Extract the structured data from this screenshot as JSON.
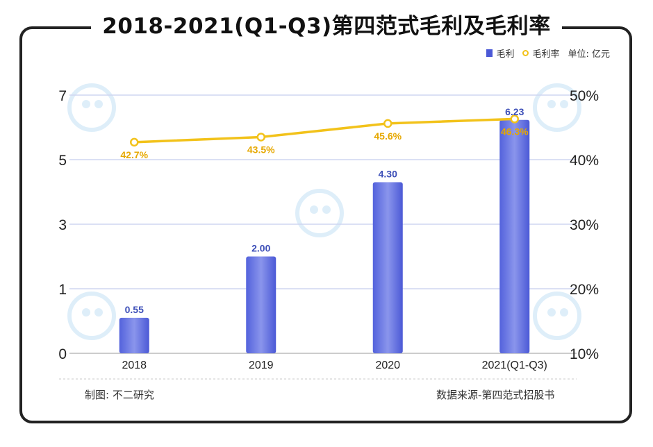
{
  "title": "2018-2021(Q1-Q3)第四范式毛利及毛利率",
  "legend": {
    "bar_label": "毛利",
    "line_label": "毛利率",
    "unit": "单位: 亿元"
  },
  "colors": {
    "bar": "#4b59d6",
    "bar_light": "#8a95ec",
    "line": "#f2c21a",
    "bar_label": "#3d4fb8",
    "line_label": "#e6a800",
    "grid": "#cfd6f1"
  },
  "footer": {
    "maker": "制图: 不二研究",
    "source": "数据来源-第四范式招股书"
  },
  "watermark_text": "不二研究",
  "chart_data": {
    "type": "bar",
    "title": "2018-2021(Q1-Q3)第四范式毛利及毛利率",
    "categories": [
      "2018",
      "2019",
      "2020",
      "2021(Q1-Q3)"
    ],
    "series": [
      {
        "name": "毛利",
        "type": "bar",
        "axis": "left",
        "values": [
          0.55,
          2.0,
          4.3,
          6.23
        ],
        "labels": [
          "0.55",
          "2.00",
          "4.30",
          "6.23"
        ]
      },
      {
        "name": "毛利率",
        "type": "line",
        "axis": "right",
        "values": [
          42.7,
          43.5,
          45.6,
          46.3
        ],
        "labels": [
          "42.7%",
          "43.5%",
          "45.6%",
          "46.3%"
        ]
      }
    ],
    "left_axis": {
      "ticks": [
        0,
        1,
        3,
        5,
        7
      ],
      "labels": [
        "0",
        "1",
        "3",
        "5",
        "7"
      ]
    },
    "right_axis": {
      "min": 10,
      "max": 50,
      "ticks": [
        10,
        20,
        30,
        40,
        50
      ],
      "labels": [
        "10%",
        "20%",
        "30%",
        "40%",
        "50%"
      ]
    },
    "grid": true,
    "legend_position": "top-right"
  }
}
